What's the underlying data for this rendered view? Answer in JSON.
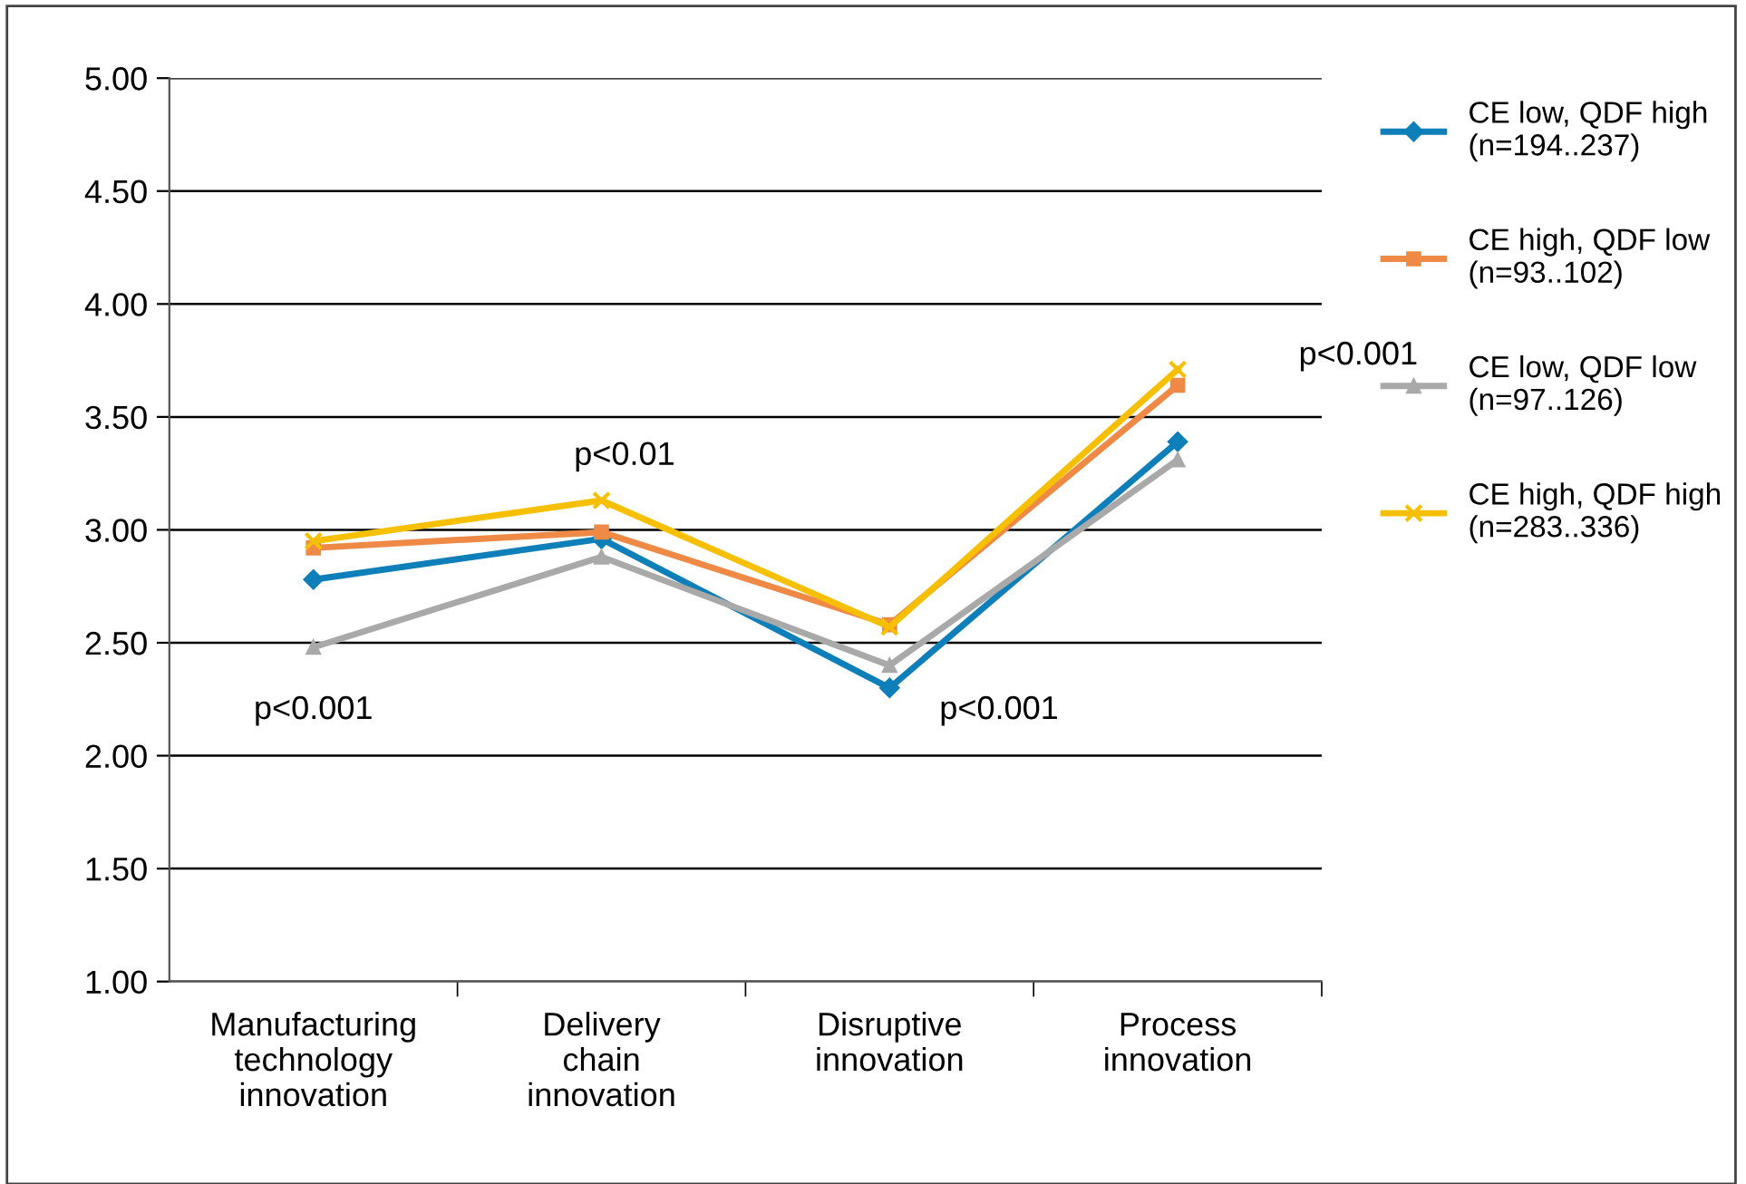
{
  "chart_data": {
    "type": "line",
    "categories": [
      "Manufacturing\ntechnology\ninnovation",
      "Delivery\nchain\ninnovation",
      "Disruptive\ninnovation",
      "Process\ninnovation"
    ],
    "series": [
      {
        "name": "CE low, QDF high\n(n=194..237)",
        "color": "#0e7fb8",
        "marker": "diamond",
        "values": [
          2.78,
          2.96,
          2.3,
          3.39
        ]
      },
      {
        "name": "CE high, QDF low\n(n=93..102)",
        "color": "#ee8a45",
        "marker": "square",
        "values": [
          2.92,
          2.99,
          2.58,
          3.64
        ]
      },
      {
        "name": "CE low, QDF low\n(n=97..126)",
        "color": "#a9a9a9",
        "marker": "triangle",
        "values": [
          2.48,
          2.88,
          2.4,
          3.31
        ]
      },
      {
        "name": "CE high, QDF high\n(n=283..336)",
        "color": "#f6c000",
        "marker": "cross",
        "values": [
          2.95,
          3.13,
          2.57,
          3.71
        ]
      }
    ],
    "ylim": [
      1.0,
      5.0
    ],
    "yticks": [
      {
        "value": 1.0,
        "label": "1.00"
      },
      {
        "value": 1.5,
        "label": "1.50"
      },
      {
        "value": 2.0,
        "label": "2.00"
      },
      {
        "value": 2.5,
        "label": "2.50"
      },
      {
        "value": 3.0,
        "label": "3.00"
      },
      {
        "value": 3.5,
        "label": "3.50"
      },
      {
        "value": 4.0,
        "label": "4.00"
      },
      {
        "value": 4.5,
        "label": "4.50"
      },
      {
        "value": 5.0,
        "label": "5.00"
      }
    ],
    "annotations": [
      "p<0.001",
      "p<0.01",
      "p<0.001",
      "p<0.001"
    ],
    "grid": "y",
    "legend": "right",
    "line_style": "solid"
  }
}
